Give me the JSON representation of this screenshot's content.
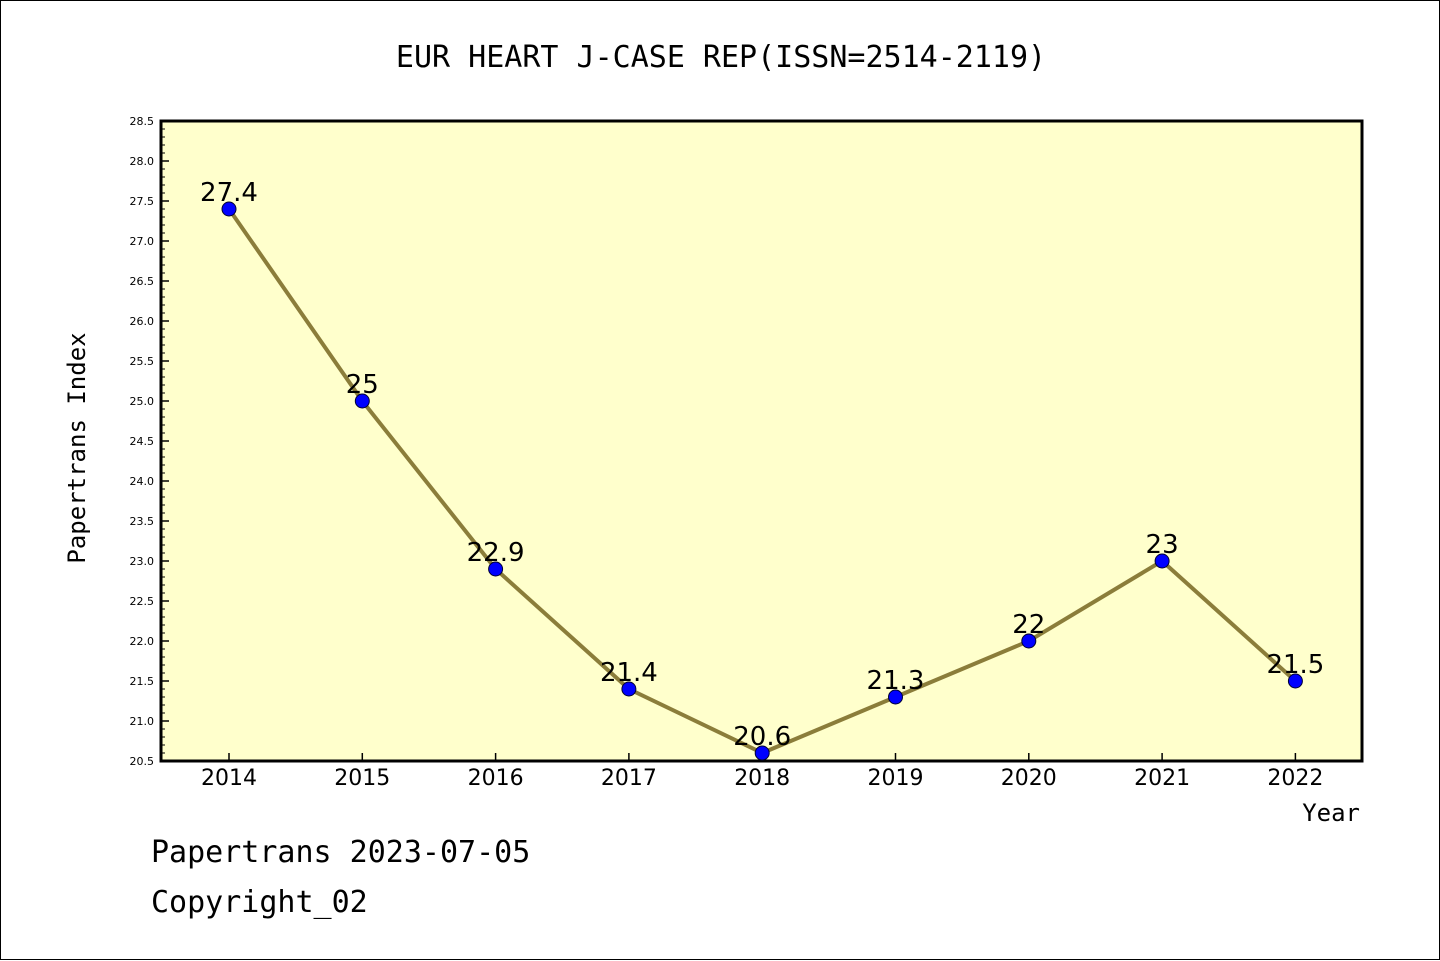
{
  "chart_data": {
    "type": "line",
    "title": "EUR HEART J-CASE REP(ISSN=2514-2119)",
    "xlabel": "Year",
    "ylabel": "Papertrans Index",
    "categories": [
      "2014",
      "2015",
      "2016",
      "2017",
      "2018",
      "2019",
      "2020",
      "2021",
      "2022"
    ],
    "values": [
      27.4,
      25,
      22.9,
      21.4,
      20.6,
      21.3,
      22,
      23,
      21.5
    ],
    "data_labels": [
      "27.4",
      "25",
      "22.9",
      "21.4",
      "20.6",
      "21.3",
      "22",
      "23",
      "21.5"
    ],
    "ylim": [
      20.5,
      28.5
    ],
    "yticks": [
      "20.5",
      "21.0",
      "21.5",
      "22.0",
      "22.5",
      "23.0",
      "23.5",
      "24.0",
      "24.5",
      "25.0",
      "25.5",
      "26.0",
      "26.5",
      "27.0",
      "27.5",
      "28.0",
      "28.5"
    ],
    "grid": false,
    "legend": "none",
    "colors": {
      "plot_background": "#ffffcc",
      "line": "#8b7d3a",
      "marker": "#0000ff"
    }
  },
  "footer": {
    "line1": "Papertrans 2023-07-05",
    "line2": "Copyright_02"
  }
}
